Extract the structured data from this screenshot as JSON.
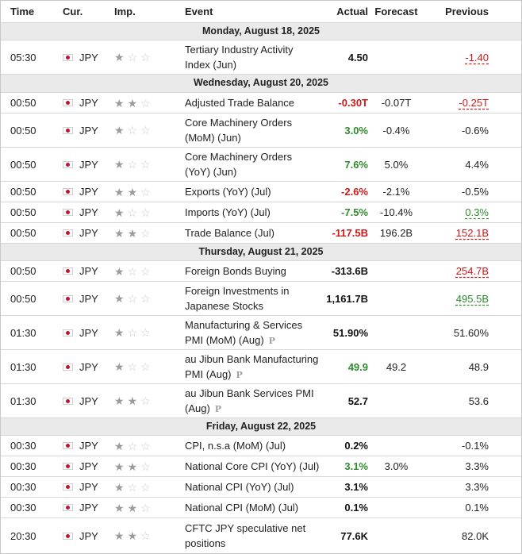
{
  "header": {
    "time": "Time",
    "cur": "Cur.",
    "imp": "Imp.",
    "event": "Event",
    "actual": "Actual",
    "forecast": "Forecast",
    "previous": "Previous"
  },
  "days": [
    {
      "label": "Monday, August 18, 2025"
    },
    {
      "label": "Wednesday, August 20, 2025"
    },
    {
      "label": "Thursday, August 21, 2025"
    },
    {
      "label": "Friday, August 22, 2025"
    }
  ],
  "events": [
    {
      "time": "05:30",
      "cur": "JPY",
      "imp": 1,
      "event": "Tertiary Industry Activity Index (Jun)",
      "actual": "4.50",
      "actual_color": "black",
      "forecast": "",
      "previous": "-1.40",
      "prev_style": "red"
    },
    {
      "time": "00:50",
      "cur": "JPY",
      "imp": 2,
      "event": "Adjusted Trade Balance",
      "actual": "-0.30T",
      "actual_color": "red",
      "forecast": "-0.07T",
      "previous": "-0.25T",
      "prev_style": "red"
    },
    {
      "time": "00:50",
      "cur": "JPY",
      "imp": 1,
      "event": "Core Machinery Orders (MoM) (Jun)",
      "actual": "3.0%",
      "actual_color": "green",
      "forecast": "-0.4%",
      "previous": "-0.6%",
      "prev_style": "plain"
    },
    {
      "time": "00:50",
      "cur": "JPY",
      "imp": 1,
      "event": "Core Machinery Orders (YoY) (Jun)",
      "actual": "7.6%",
      "actual_color": "green",
      "forecast": "5.0%",
      "previous": "4.4%",
      "prev_style": "plain"
    },
    {
      "time": "00:50",
      "cur": "JPY",
      "imp": 2,
      "event": "Exports (YoY) (Jul)",
      "actual": "-2.6%",
      "actual_color": "red",
      "forecast": "-2.1%",
      "previous": "-0.5%",
      "prev_style": "plain"
    },
    {
      "time": "00:50",
      "cur": "JPY",
      "imp": 1,
      "event": "Imports (YoY) (Jul)",
      "actual": "-7.5%",
      "actual_color": "green",
      "forecast": "-10.4%",
      "previous": "0.3%",
      "prev_style": "green"
    },
    {
      "time": "00:50",
      "cur": "JPY",
      "imp": 2,
      "event": "Trade Balance (Jul)",
      "actual": "-117.5B",
      "actual_color": "red",
      "forecast": "196.2B",
      "previous": "152.1B",
      "prev_style": "red"
    },
    {
      "time": "00:50",
      "cur": "JPY",
      "imp": 1,
      "event": "Foreign Bonds Buying",
      "actual": "-313.6B",
      "actual_color": "black",
      "forecast": "",
      "previous": "254.7B",
      "prev_style": "red"
    },
    {
      "time": "00:50",
      "cur": "JPY",
      "imp": 1,
      "event": "Foreign Investments in Japanese Stocks",
      "actual": "1,161.7B",
      "actual_color": "black",
      "forecast": "",
      "previous": "495.5B",
      "prev_style": "green"
    },
    {
      "time": "01:30",
      "cur": "JPY",
      "imp": 1,
      "event": "Manufacturing & Services PMI (MoM) (Aug)",
      "pre": "P",
      "actual": "51.90%",
      "actual_color": "black",
      "forecast": "",
      "previous": "51.60%",
      "prev_style": "plain"
    },
    {
      "time": "01:30",
      "cur": "JPY",
      "imp": 1,
      "event": "au Jibun Bank Manufacturing PMI (Aug)",
      "pre": "P",
      "actual": "49.9",
      "actual_color": "green",
      "forecast": "49.2",
      "previous": "48.9",
      "prev_style": "plain"
    },
    {
      "time": "01:30",
      "cur": "JPY",
      "imp": 2,
      "event": "au Jibun Bank Services PMI (Aug)",
      "pre": "P",
      "actual": "52.7",
      "actual_color": "black",
      "forecast": "",
      "previous": "53.6",
      "prev_style": "plain"
    },
    {
      "time": "00:30",
      "cur": "JPY",
      "imp": 1,
      "event": "CPI, n.s.a (MoM) (Jul)",
      "actual": "0.2%",
      "actual_color": "black",
      "forecast": "",
      "previous": "-0.1%",
      "prev_style": "plain"
    },
    {
      "time": "00:30",
      "cur": "JPY",
      "imp": 2,
      "event": "National Core CPI (YoY) (Jul)",
      "actual": "3.1%",
      "actual_color": "green",
      "forecast": "3.0%",
      "previous": "3.3%",
      "prev_style": "plain"
    },
    {
      "time": "00:30",
      "cur": "JPY",
      "imp": 1,
      "event": "National CPI (YoY) (Jul)",
      "actual": "3.1%",
      "actual_color": "black",
      "forecast": "",
      "previous": "3.3%",
      "prev_style": "plain"
    },
    {
      "time": "00:30",
      "cur": "JPY",
      "imp": 2,
      "event": "National CPI (MoM) (Jul)",
      "actual": "0.1%",
      "actual_color": "black",
      "forecast": "",
      "previous": "0.1%",
      "prev_style": "plain"
    },
    {
      "time": "20:30",
      "cur": "JPY",
      "imp": 2,
      "event": "CFTC JPY speculative net positions",
      "actual": "77.6K",
      "actual_color": "black",
      "forecast": "",
      "previous": "82.0K",
      "prev_style": "plain"
    }
  ],
  "icons": {
    "flag": "japan-flag-icon",
    "star_on": "star-filled-icon",
    "star_off": "star-empty-icon",
    "prelim": "preliminary-icon"
  }
}
